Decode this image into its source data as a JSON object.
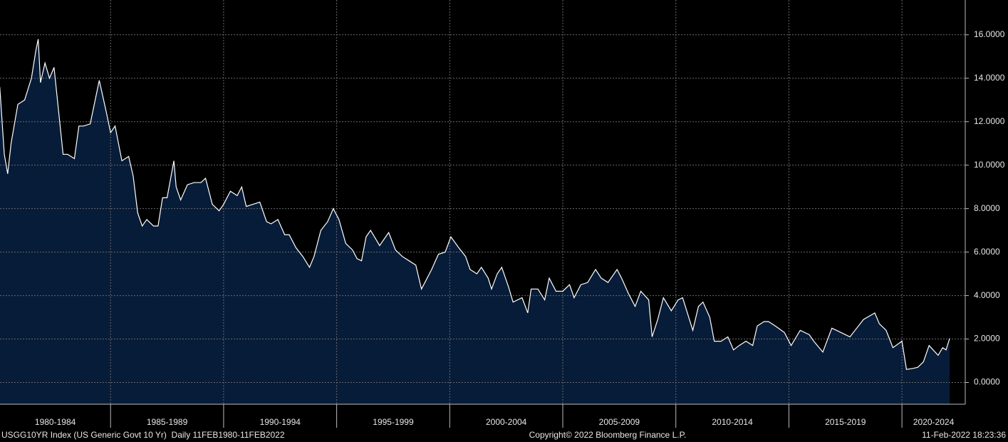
{
  "chart_data": {
    "type": "line",
    "title": "USGG10YR Index (US Generic Govt 10 Yr)  Daily 11FEB1980-11FEB2022",
    "copyright": "Copyright© 2022 Bloomberg Finance L.P.",
    "timestamp": "11-Feb-2022 18:23:36",
    "color": "#ffffff",
    "fill_color": "#071c38",
    "grid": true,
    "categories": [
      "1980-1984",
      "1985-1989",
      "1990-1994",
      "1995-1999",
      "2000-2004",
      "2005-2009",
      "2010-2014",
      "2015-2019",
      "2020-2024"
    ],
    "xlim": [
      1980.11,
      2022.8
    ],
    "xticks": [
      1985,
      1990,
      1995,
      2000,
      2005,
      2010,
      2015,
      2020
    ],
    "ylim": [
      -1,
      17.6
    ],
    "yticks": [
      {
        "value": 0,
        "label": "0.0000"
      },
      {
        "value": 2,
        "label": "2.0000"
      },
      {
        "value": 4,
        "label": "4.0000"
      },
      {
        "value": 6,
        "label": "6.0000"
      },
      {
        "value": 8,
        "label": "8.0000"
      },
      {
        "value": 10,
        "label": "10.0000"
      },
      {
        "value": 12,
        "label": "12.0000"
      },
      {
        "value": 14,
        "label": "14.0000"
      },
      {
        "value": 16,
        "label": "16.0000"
      }
    ],
    "x": [
      1980.1,
      1980.3,
      1980.45,
      1980.6,
      1980.9,
      1981.2,
      1981.5,
      1981.7,
      1981.8,
      1981.9,
      1982.1,
      1982.3,
      1982.5,
      1982.7,
      1982.9,
      1983.1,
      1983.4,
      1983.6,
      1983.8,
      1984.1,
      1984.4,
      1984.5,
      1984.8,
      1985.0,
      1985.2,
      1985.5,
      1985.8,
      1986.0,
      1986.2,
      1986.4,
      1986.6,
      1986.9,
      1987.1,
      1987.3,
      1987.5,
      1987.8,
      1987.9,
      1988.1,
      1988.4,
      1988.7,
      1989.0,
      1989.2,
      1989.5,
      1989.8,
      1990.0,
      1990.3,
      1990.6,
      1990.8,
      1991.0,
      1991.3,
      1991.6,
      1991.9,
      1992.1,
      1992.4,
      1992.7,
      1992.9,
      1993.2,
      1993.5,
      1993.8,
      1994.0,
      1994.3,
      1994.6,
      1994.85,
      1995.1,
      1995.4,
      1995.7,
      1995.9,
      1996.1,
      1996.3,
      1996.5,
      1996.9,
      1997.3,
      1997.6,
      1997.9,
      1998.2,
      1998.5,
      1998.75,
      1998.9,
      1999.2,
      1999.5,
      1999.8,
      2000.05,
      2000.4,
      2000.7,
      2000.9,
      2001.2,
      2001.4,
      2001.7,
      2001.85,
      2002.1,
      2002.3,
      2002.6,
      2002.8,
      2003.2,
      2003.45,
      2003.6,
      2003.9,
      2004.2,
      2004.4,
      2004.7,
      2005.0,
      2005.3,
      2005.5,
      2005.8,
      2006.1,
      2006.45,
      2006.7,
      2007.0,
      2007.4,
      2007.6,
      2007.9,
      2008.2,
      2008.45,
      2008.8,
      2008.95,
      2009.2,
      2009.45,
      2009.8,
      2010.1,
      2010.3,
      2010.6,
      2010.75,
      2011.0,
      2011.2,
      2011.5,
      2011.7,
      2012.0,
      2012.3,
      2012.55,
      2012.8,
      2013.1,
      2013.4,
      2013.6,
      2013.9,
      2014.1,
      2014.4,
      2014.8,
      2015.1,
      2015.5,
      2015.9,
      2016.1,
      2016.5,
      2016.9,
      2017.1,
      2017.5,
      2017.7,
      2018.0,
      2018.3,
      2018.8,
      2019.0,
      2019.3,
      2019.6,
      2020.0,
      2020.2,
      2020.5,
      2020.7,
      2020.95,
      2021.2,
      2021.6,
      2021.8,
      2021.95,
      2022.11
    ],
    "values": [
      13.6,
      10.5,
      9.6,
      11.0,
      12.8,
      13.0,
      14.0,
      15.3,
      15.8,
      13.8,
      14.7,
      14.0,
      14.5,
      12.5,
      10.5,
      10.5,
      10.3,
      11.8,
      11.8,
      11.9,
      13.4,
      13.9,
      12.5,
      11.5,
      11.8,
      10.2,
      10.4,
      9.5,
      7.8,
      7.2,
      7.5,
      7.2,
      7.2,
      8.5,
      8.5,
      10.2,
      9.0,
      8.4,
      9.1,
      9.2,
      9.2,
      9.4,
      8.2,
      7.9,
      8.2,
      8.8,
      8.6,
      9.0,
      8.1,
      8.2,
      8.3,
      7.4,
      7.3,
      7.5,
      6.8,
      6.8,
      6.2,
      5.8,
      5.3,
      5.8,
      7.0,
      7.4,
      8.0,
      7.5,
      6.4,
      6.1,
      5.7,
      5.6,
      6.7,
      7.0,
      6.3,
      6.9,
      6.1,
      5.8,
      5.6,
      5.4,
      4.3,
      4.6,
      5.2,
      5.9,
      6.0,
      6.7,
      6.2,
      5.8,
      5.2,
      5.0,
      5.3,
      4.8,
      4.3,
      5.0,
      5.3,
      4.4,
      3.7,
      3.9,
      3.2,
      4.3,
      4.3,
      3.8,
      4.8,
      4.2,
      4.2,
      4.5,
      3.9,
      4.5,
      4.6,
      5.2,
      4.8,
      4.6,
      5.2,
      4.8,
      4.1,
      3.5,
      4.2,
      3.8,
      2.1,
      2.9,
      3.9,
      3.3,
      3.8,
      3.9,
      2.9,
      2.4,
      3.5,
      3.7,
      3.0,
      1.9,
      1.9,
      2.1,
      1.5,
      1.7,
      1.9,
      1.7,
      2.6,
      2.8,
      2.8,
      2.6,
      2.3,
      1.7,
      2.4,
      2.2,
      1.9,
      1.4,
      2.5,
      2.4,
      2.2,
      2.1,
      2.5,
      2.9,
      3.2,
      2.7,
      2.4,
      1.6,
      1.9,
      0.6,
      0.65,
      0.7,
      0.95,
      1.7,
      1.25,
      1.6,
      1.5,
      2.03
    ]
  }
}
